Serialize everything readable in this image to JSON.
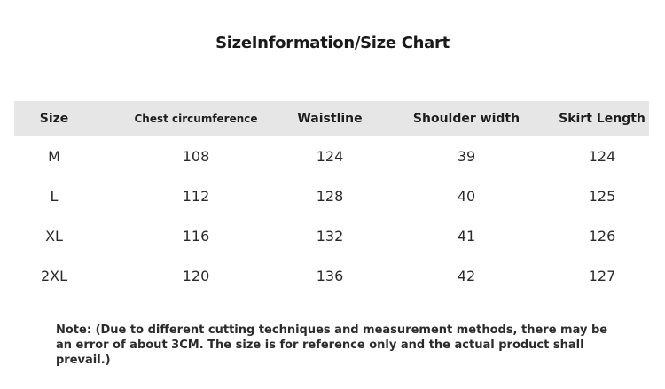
{
  "title": "SizeInformation/Size Chart",
  "table": {
    "headers": [
      "Size",
      "Chest circumference",
      "Waistline",
      "Shoulder width",
      "Skirt Length"
    ],
    "rows": [
      [
        "M",
        "108",
        "124",
        "39",
        "124"
      ],
      [
        "L",
        "112",
        "128",
        "40",
        "125"
      ],
      [
        "XL",
        "116",
        "132",
        "41",
        "126"
      ],
      [
        "2XL",
        "120",
        "136",
        "42",
        "127"
      ]
    ]
  },
  "note": "Note: (Due to different cutting techniques and measurement methods, there may be an error of about 3CM. The size is for reference only and the actual product shall prevail.)"
}
